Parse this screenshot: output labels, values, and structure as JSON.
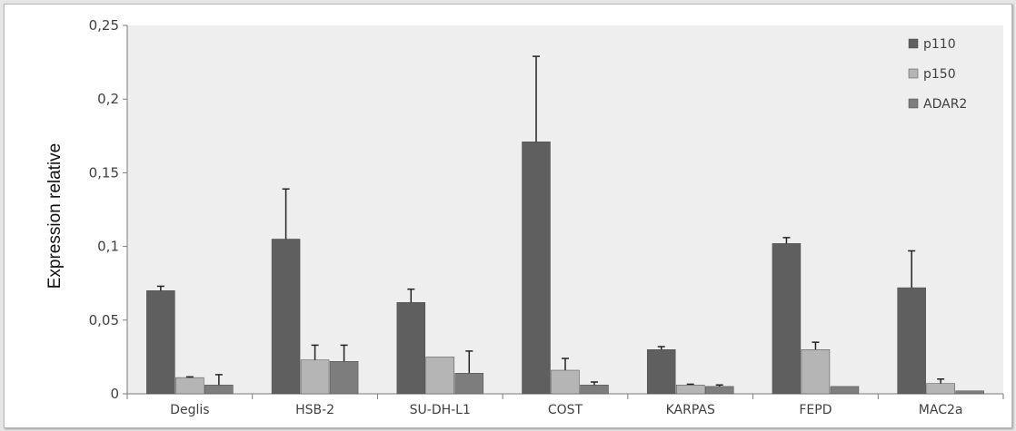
{
  "chart_data": {
    "type": "bar",
    "title": "",
    "xlabel": "",
    "ylabel": "Expression relative",
    "ylim": [
      0,
      0.25
    ],
    "yticks": [
      {
        "v": 0,
        "label": "0"
      },
      {
        "v": 0.05,
        "label": "0,05"
      },
      {
        "v": 0.1,
        "label": "0,1"
      },
      {
        "v": 0.15,
        "label": "0,15"
      },
      {
        "v": 0.2,
        "label": "0,2"
      },
      {
        "v": 0.25,
        "label": "0,25"
      }
    ],
    "categories": [
      "Deglis",
      "HSB-2",
      "SU-DH-L1",
      "COST",
      "KARPAS",
      "FEPD",
      "MAC2a"
    ],
    "legend_position": "top-right",
    "grid": false,
    "series": [
      {
        "name": "p110",
        "color": "#5f5f5f",
        "values": [
          0.07,
          0.105,
          0.062,
          0.171,
          0.03,
          0.102,
          0.072
        ],
        "errors": [
          0.003,
          0.034,
          0.009,
          0.058,
          0.002,
          0.004,
          0.025
        ]
      },
      {
        "name": "p150",
        "color": "#b5b5b5",
        "values": [
          0.011,
          0.023,
          0.025,
          0.016,
          0.006,
          0.03,
          0.007
        ],
        "errors": [
          0.0005,
          0.01,
          0.0,
          0.008,
          0.0005,
          0.005,
          0.003
        ]
      },
      {
        "name": "ADAR2",
        "color": "#7d7d7d",
        "values": [
          0.006,
          0.022,
          0.014,
          0.006,
          0.005,
          0.005,
          0.002
        ],
        "errors": [
          0.007,
          0.011,
          0.015,
          0.002,
          0.001,
          0.0,
          0.0
        ]
      }
    ]
  }
}
